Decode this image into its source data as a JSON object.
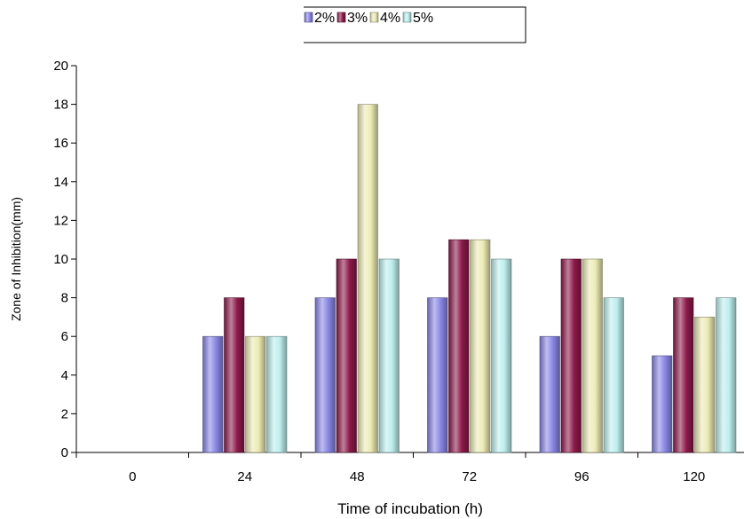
{
  "chart_data": {
    "type": "bar",
    "categories": [
      "0",
      "24",
      "48",
      "72",
      "96",
      "120"
    ],
    "series": [
      {
        "name": "2%",
        "values": [
          0,
          6,
          8,
          8,
          6,
          5
        ],
        "color": "#8a87e6"
      },
      {
        "name": "3%",
        "values": [
          0,
          8,
          10,
          11,
          10,
          8
        ],
        "color": "#8c1a4a"
      },
      {
        "name": "4%",
        "values": [
          0,
          6,
          18,
          11,
          10,
          7
        ],
        "color": "#ecebb4"
      },
      {
        "name": "5%",
        "values": [
          0,
          6,
          10,
          10,
          8,
          8
        ],
        "color": "#bdeeee"
      }
    ],
    "xlabel": "Time of incubation (h)",
    "ylabel": "Zone of Inhibition(mm)",
    "ylim": [
      0,
      20
    ],
    "yticks": [
      "0",
      "2",
      "4",
      "6",
      "8",
      "10",
      "12",
      "14",
      "16",
      "18",
      "20"
    ],
    "grid": false,
    "legend_position": "top"
  }
}
